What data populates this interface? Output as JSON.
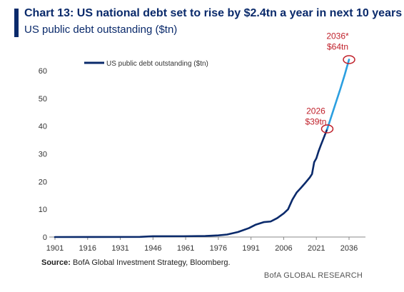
{
  "header": {
    "title": "Chart 13: US national debt set to rise by $2.4tn a year in next 10 years",
    "subtitle": "US public debt outstanding ($tn)"
  },
  "footer": {
    "source_label": "Source:",
    "source_text": " BofA Global Investment Strategy, Bloomberg.",
    "branding": "BofA GLOBAL RESEARCH"
  },
  "colors": {
    "historical": "#0a2a6b",
    "projection": "#2b9fe0",
    "highlight": "#c0212b",
    "axis": "#888888",
    "text": "#333333"
  },
  "chart_data": {
    "type": "line",
    "legend": "US public debt outstanding ($tn)",
    "legend_position": "top-left",
    "grid": false,
    "xlim": [
      1901,
      2040
    ],
    "ylim": [
      0,
      65
    ],
    "x_ticks": [
      1901,
      1916,
      1931,
      1946,
      1961,
      1976,
      1991,
      2006,
      2021,
      2036
    ],
    "y_ticks": [
      0,
      10,
      20,
      30,
      40,
      50,
      60
    ],
    "series": [
      {
        "name": "US public debt outstanding ($tn)",
        "segment": "historical",
        "x": [
          1901,
          1940,
          1944,
          1946,
          1960,
          1970,
          1976,
          1980,
          1985,
          1990,
          1993,
          1997,
          2000,
          2003,
          2006,
          2008,
          2010,
          2012,
          2014,
          2016,
          2018,
          2019,
          2020,
          2021,
          2022,
          2023,
          2024,
          2025,
          2026
        ],
        "y": [
          0.0,
          0.05,
          0.2,
          0.27,
          0.29,
          0.38,
          0.6,
          0.9,
          1.8,
          3.2,
          4.4,
          5.4,
          5.6,
          6.8,
          8.5,
          10,
          13.5,
          16.1,
          17.8,
          19.6,
          21.5,
          22.7,
          27,
          28.4,
          30.9,
          33,
          35,
          37,
          39
        ]
      },
      {
        "name": "",
        "segment": "projection",
        "x": [
          2026,
          2028,
          2030,
          2032,
          2034,
          2036
        ],
        "y": [
          39,
          43.8,
          48.6,
          53.4,
          58.5,
          64
        ]
      }
    ],
    "annotations": [
      {
        "x": 2026,
        "y": 39,
        "line1": "2026",
        "line2": "$39tn"
      },
      {
        "x": 2036,
        "y": 64,
        "line1": "2036*",
        "line2": "$64tn"
      }
    ]
  }
}
